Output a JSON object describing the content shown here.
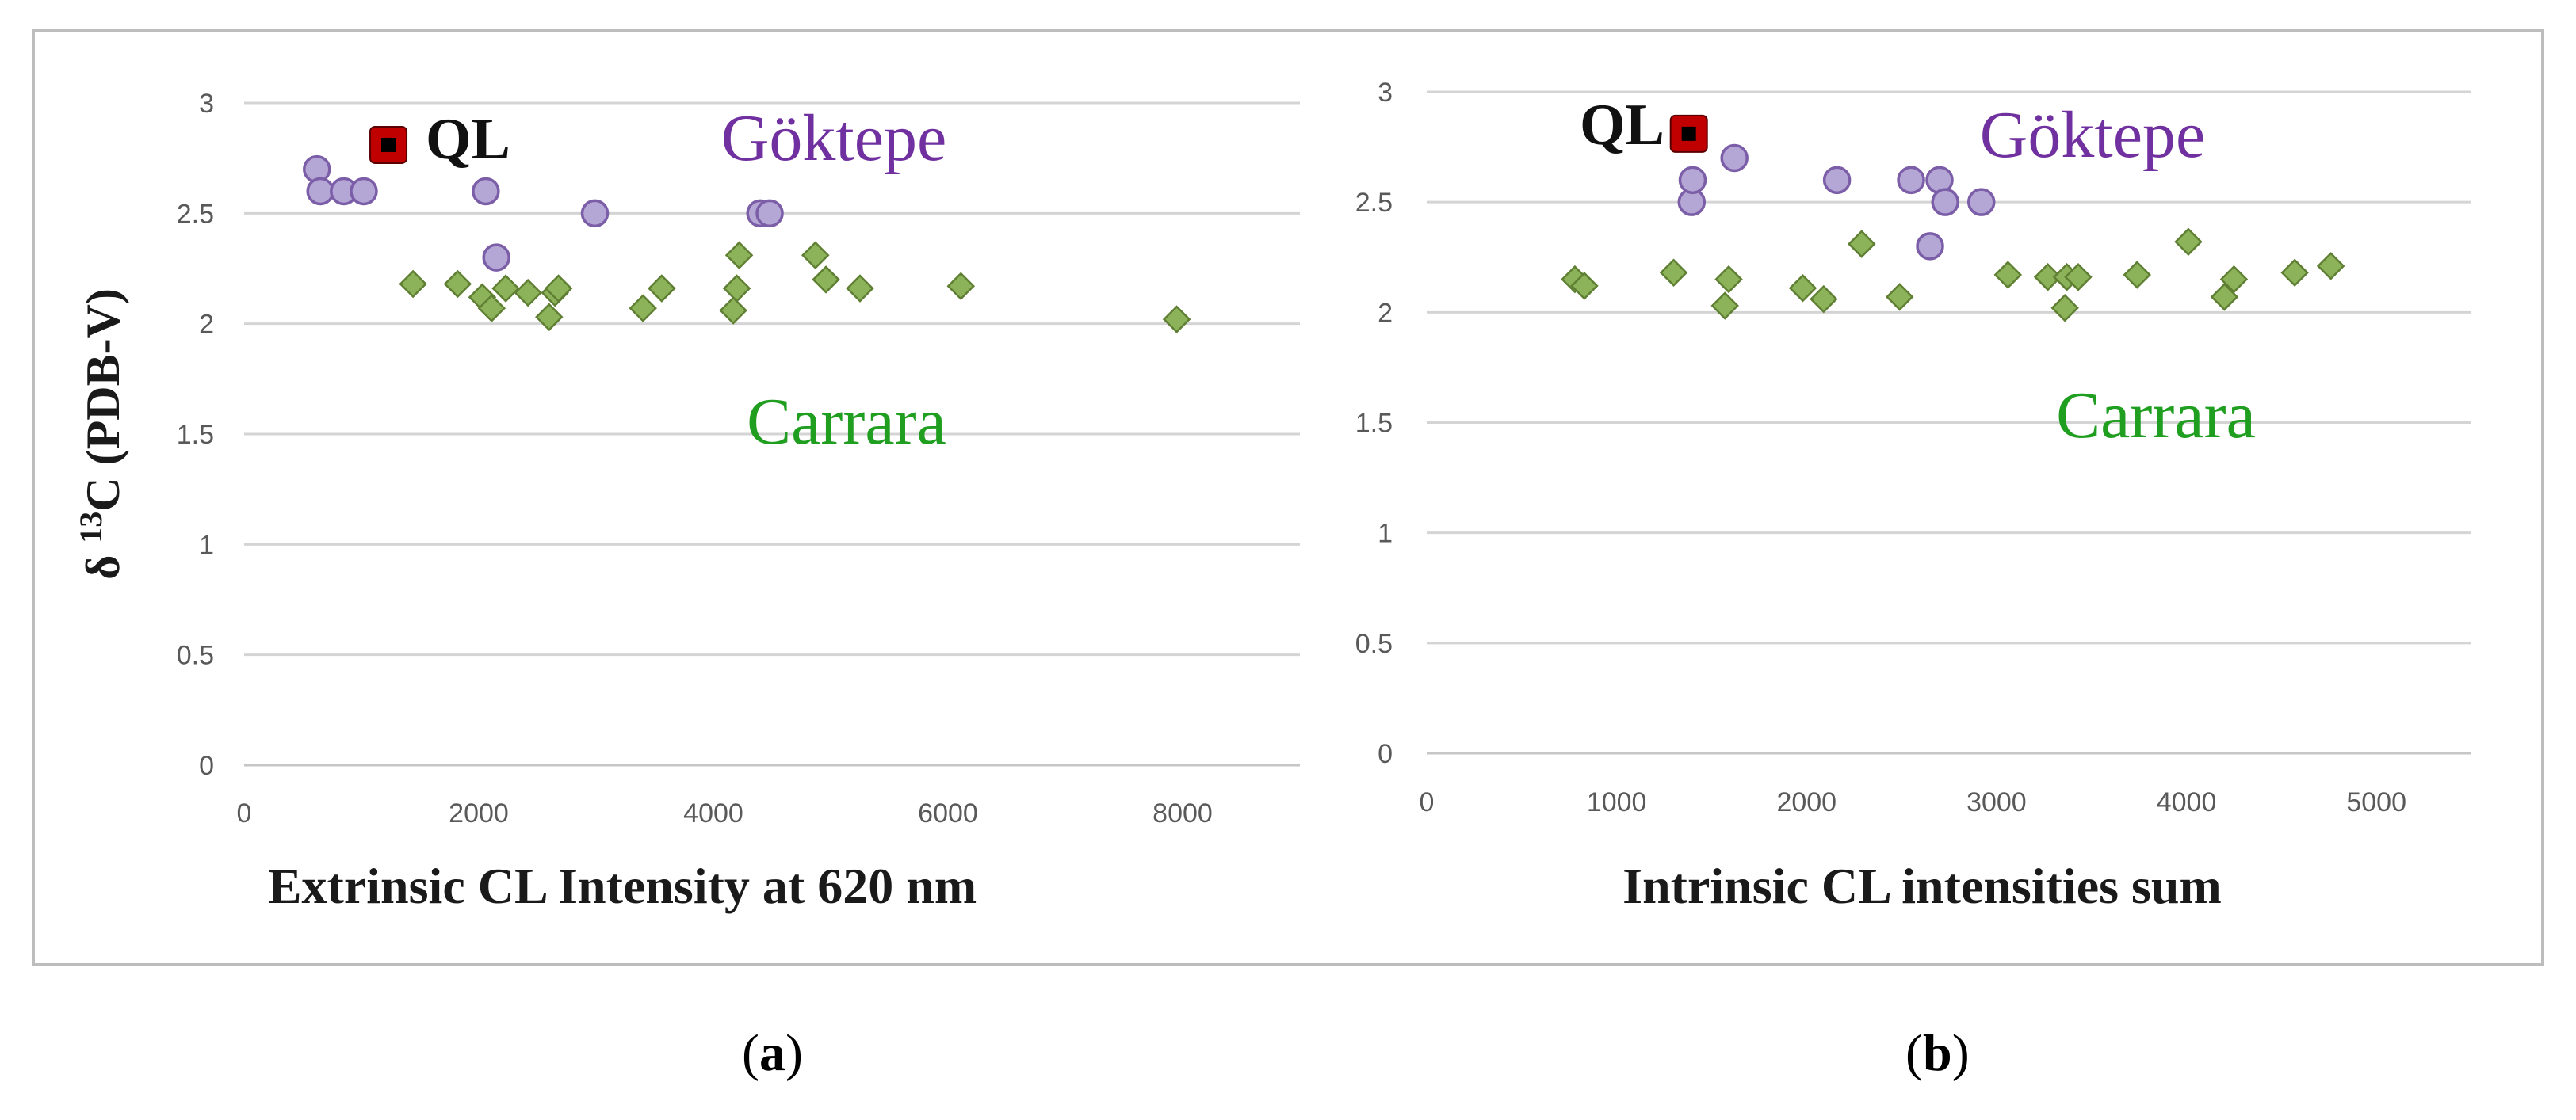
{
  "colors": {
    "frame": "#bdbdbd",
    "grid": "#d4d4d4",
    "axis": "#c6c6c6",
    "tick_text": "#595959",
    "axis_label": "#1a1a1a",
    "goktepe": "#7030a0",
    "goktepe_fill": "#b4a7d6",
    "goktepe_stroke": "#7b5ea7",
    "carrara": "#1f9e1f",
    "carrara_fill": "#8db35a",
    "carrara_stroke": "#5f7f33",
    "ql_fill": "#c00000",
    "ql_core": "#000000"
  },
  "chart_data": [
    {
      "type": "scatter",
      "panel": "a",
      "caption_letter": "a",
      "title": "",
      "xlabel": "Extrinsic CL Intensity at 620 nm",
      "ylabel": "δ 13C (PDB-V)",
      "ylabel_prefix": "δ ",
      "ylabel_sup": "13",
      "ylabel_suffix": "C (PDB-V)",
      "xlim": [
        0,
        9000
      ],
      "ylim": [
        0,
        3
      ],
      "xticks": [
        "0",
        "2000",
        "4000",
        "6000",
        "8000"
      ],
      "xtick_values": [
        0,
        2000,
        4000,
        6000,
        8000
      ],
      "yticks": [
        "0",
        "0.5",
        "1",
        "1.5",
        "2",
        "2.5",
        "3"
      ],
      "ytick_values": [
        0,
        0.5,
        1,
        1.5,
        2,
        2.5,
        3
      ],
      "grid": true,
      "annotations": {
        "goktepe": "Göktepe",
        "carrara": "Carrara",
        "ql": "QL"
      },
      "series": [
        {
          "name": "Göktepe",
          "marker": "circle",
          "points": [
            [
              620,
              2.7
            ],
            [
              650,
              2.6
            ],
            [
              850,
              2.6
            ],
            [
              1020,
              2.6
            ],
            [
              2060,
              2.6
            ],
            [
              2150,
              2.3
            ],
            [
              2990,
              2.5
            ],
            [
              4400,
              2.5
            ],
            [
              4480,
              2.5
            ]
          ]
        },
        {
          "name": "Carrara",
          "marker": "diamond",
          "points": [
            [
              1440,
              2.18
            ],
            [
              1820,
              2.18
            ],
            [
              2030,
              2.12
            ],
            [
              2110,
              2.07
            ],
            [
              2230,
              2.16
            ],
            [
              2420,
              2.14
            ],
            [
              2600,
              2.03
            ],
            [
              2650,
              2.14
            ],
            [
              2680,
              2.16
            ],
            [
              3400,
              2.07
            ],
            [
              3560,
              2.16
            ],
            [
              4170,
              2.06
            ],
            [
              4200,
              2.16
            ],
            [
              4220,
              2.31
            ],
            [
              4870,
              2.31
            ],
            [
              4960,
              2.2
            ],
            [
              5250,
              2.16
            ],
            [
              6110,
              2.17
            ],
            [
              7950,
              2.02
            ]
          ]
        },
        {
          "name": "QL",
          "marker": "square",
          "points": [
            [
              1230,
              2.81
            ]
          ]
        }
      ]
    },
    {
      "type": "scatter",
      "panel": "b",
      "caption_letter": "b",
      "title": "",
      "xlabel": "Intrinsic CL intensities sum",
      "ylabel": "",
      "xlim": [
        0,
        5500
      ],
      "ylim": [
        0,
        3
      ],
      "xticks": [
        "0",
        "1000",
        "2000",
        "3000",
        "4000",
        "5000"
      ],
      "xtick_values": [
        0,
        1000,
        2000,
        3000,
        4000,
        5000
      ],
      "yticks": [
        "0",
        "0.5",
        "1",
        "1.5",
        "2",
        "2.5",
        "3"
      ],
      "ytick_values": [
        0,
        0.5,
        1,
        1.5,
        2,
        2.5,
        3
      ],
      "grid": true,
      "annotations": {
        "goktepe": "Göktepe",
        "carrara": "Carrara",
        "ql": "QL"
      },
      "series": [
        {
          "name": "Göktepe",
          "marker": "circle",
          "points": [
            [
              1395,
              2.5
            ],
            [
              1400,
              2.6
            ],
            [
              1620,
              2.7
            ],
            [
              2160,
              2.6
            ],
            [
              2550,
              2.6
            ],
            [
              2650,
              2.3
            ],
            [
              2700,
              2.6
            ],
            [
              2730,
              2.5
            ],
            [
              2920,
              2.5
            ]
          ]
        },
        {
          "name": "Carrara",
          "marker": "diamond",
          "points": [
            [
              780,
              2.15
            ],
            [
              830,
              2.12
            ],
            [
              1300,
              2.18
            ],
            [
              1570,
              2.03
            ],
            [
              1590,
              2.15
            ],
            [
              1980,
              2.11
            ],
            [
              2090,
              2.06
            ],
            [
              2290,
              2.31
            ],
            [
              2490,
              2.07
            ],
            [
              3060,
              2.17
            ],
            [
              3270,
              2.16
            ],
            [
              3360,
              2.02
            ],
            [
              3370,
              2.16
            ],
            [
              3430,
              2.16
            ],
            [
              3740,
              2.17
            ],
            [
              4010,
              2.32
            ],
            [
              4200,
              2.07
            ],
            [
              4250,
              2.15
            ],
            [
              4570,
              2.18
            ],
            [
              4760,
              2.21
            ]
          ]
        },
        {
          "name": "QL",
          "marker": "square",
          "points": [
            [
              1380,
              2.81
            ]
          ]
        }
      ]
    }
  ]
}
